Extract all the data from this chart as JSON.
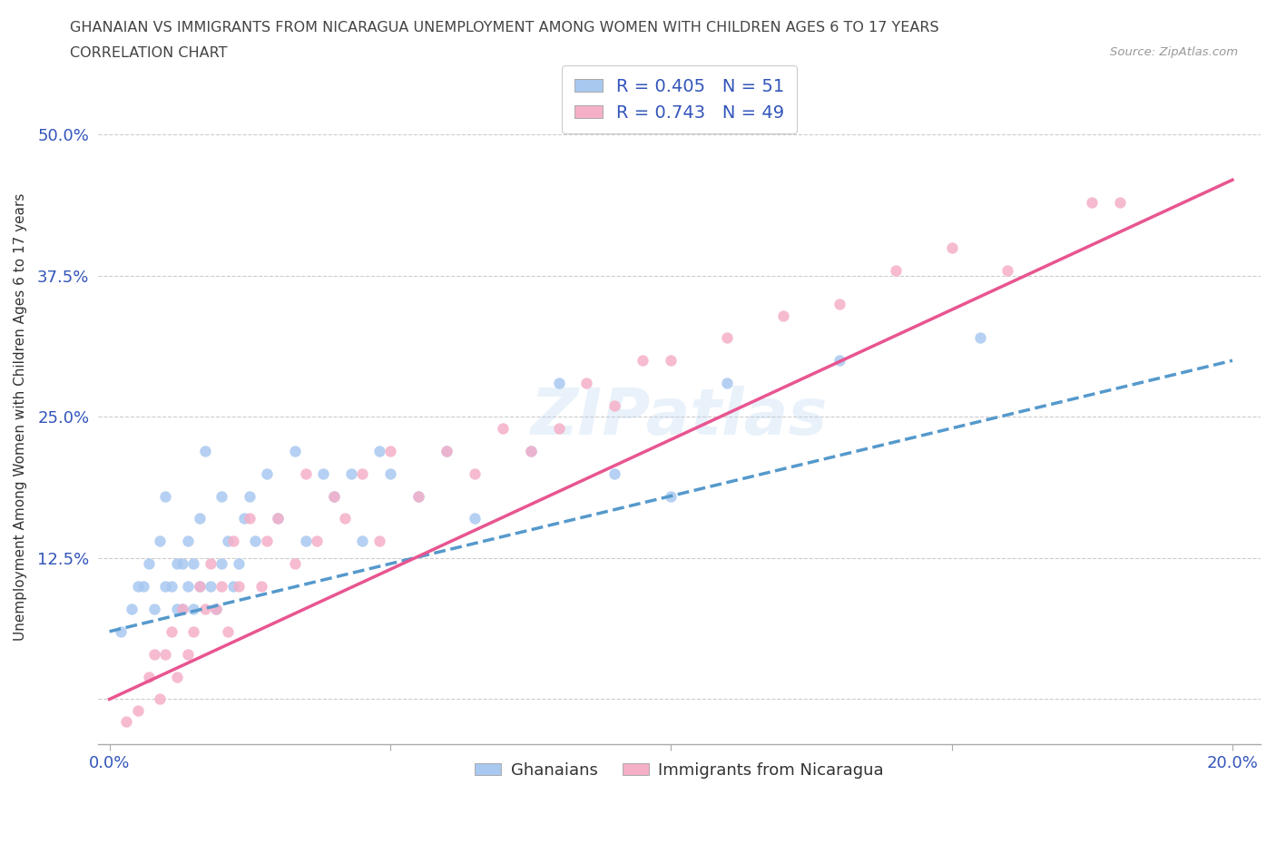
{
  "title_line1": "GHANAIAN VS IMMIGRANTS FROM NICARAGUA UNEMPLOYMENT AMONG WOMEN WITH CHILDREN AGES 6 TO 17 YEARS",
  "title_line2": "CORRELATION CHART",
  "source_text": "Source: ZipAtlas.com",
  "watermark": "ZIPatlas",
  "ylabel": "Unemployment Among Women with Children Ages 6 to 17 years",
  "xlim": [
    -0.002,
    0.205
  ],
  "ylim": [
    -0.04,
    0.54
  ],
  "yticks": [
    0.0,
    0.125,
    0.25,
    0.375,
    0.5
  ],
  "ytick_labels": [
    "",
    "12.5%",
    "25.0%",
    "37.5%",
    "50.0%"
  ],
  "xticks": [
    0.0,
    0.05,
    0.1,
    0.15,
    0.2
  ],
  "xtick_labels": [
    "0.0%",
    "",
    "",
    "",
    "20.0%"
  ],
  "R_ghanaian": 0.405,
  "N_ghanaian": 51,
  "R_nicaragua": 0.743,
  "N_nicaragua": 49,
  "color_ghanaian": "#a8c8f0",
  "color_nicaragua": "#f5b0c8",
  "color_line_ghanaian": "#5599cc",
  "color_line_nicaragua": "#e85590",
  "legend_label_ghanaian": "Ghanaians",
  "legend_label_nicaragua": "Immigrants from Nicaragua",
  "scatter_ghanaian_x": [
    0.002,
    0.004,
    0.005,
    0.006,
    0.007,
    0.008,
    0.009,
    0.01,
    0.01,
    0.011,
    0.012,
    0.012,
    0.013,
    0.013,
    0.014,
    0.014,
    0.015,
    0.015,
    0.016,
    0.016,
    0.017,
    0.018,
    0.019,
    0.02,
    0.02,
    0.021,
    0.022,
    0.023,
    0.024,
    0.025,
    0.026,
    0.028,
    0.03,
    0.033,
    0.035,
    0.038,
    0.04,
    0.043,
    0.045,
    0.048,
    0.05,
    0.055,
    0.06,
    0.065,
    0.075,
    0.08,
    0.09,
    0.1,
    0.11,
    0.13,
    0.155
  ],
  "scatter_ghanaian_y": [
    0.06,
    0.08,
    0.1,
    0.1,
    0.12,
    0.08,
    0.14,
    0.1,
    0.18,
    0.1,
    0.08,
    0.12,
    0.08,
    0.12,
    0.1,
    0.14,
    0.08,
    0.12,
    0.1,
    0.16,
    0.22,
    0.1,
    0.08,
    0.12,
    0.18,
    0.14,
    0.1,
    0.12,
    0.16,
    0.18,
    0.14,
    0.2,
    0.16,
    0.22,
    0.14,
    0.2,
    0.18,
    0.2,
    0.14,
    0.22,
    0.2,
    0.18,
    0.22,
    0.16,
    0.22,
    0.28,
    0.2,
    0.18,
    0.28,
    0.3,
    0.32
  ],
  "scatter_nicaragua_x": [
    0.003,
    0.005,
    0.007,
    0.008,
    0.009,
    0.01,
    0.011,
    0.012,
    0.013,
    0.014,
    0.015,
    0.016,
    0.017,
    0.018,
    0.019,
    0.02,
    0.021,
    0.022,
    0.023,
    0.025,
    0.027,
    0.028,
    0.03,
    0.033,
    0.035,
    0.037,
    0.04,
    0.042,
    0.045,
    0.048,
    0.05,
    0.055,
    0.06,
    0.065,
    0.07,
    0.075,
    0.08,
    0.085,
    0.09,
    0.095,
    0.1,
    0.11,
    0.12,
    0.13,
    0.14,
    0.15,
    0.16,
    0.175,
    0.18
  ],
  "scatter_nicaragua_y": [
    -0.02,
    -0.01,
    0.02,
    0.04,
    0.0,
    0.04,
    0.06,
    0.02,
    0.08,
    0.04,
    0.06,
    0.1,
    0.08,
    0.12,
    0.08,
    0.1,
    0.06,
    0.14,
    0.1,
    0.16,
    0.1,
    0.14,
    0.16,
    0.12,
    0.2,
    0.14,
    0.18,
    0.16,
    0.2,
    0.14,
    0.22,
    0.18,
    0.22,
    0.2,
    0.24,
    0.22,
    0.24,
    0.28,
    0.26,
    0.3,
    0.3,
    0.32,
    0.34,
    0.35,
    0.38,
    0.4,
    0.38,
    0.44,
    0.44
  ],
  "line_ghanaian_x0": 0.0,
  "line_ghanaian_y0": 0.06,
  "line_ghanaian_x1": 0.2,
  "line_ghanaian_y1": 0.3,
  "line_nicaragua_x0": 0.0,
  "line_nicaragua_y0": 0.0,
  "line_nicaragua_x1": 0.2,
  "line_nicaragua_y1": 0.46,
  "background_color": "#ffffff",
  "grid_color": "#cccccc",
  "title_color": "#444444",
  "text_color_blue": "#3355bb",
  "text_color_dark": "#333333"
}
